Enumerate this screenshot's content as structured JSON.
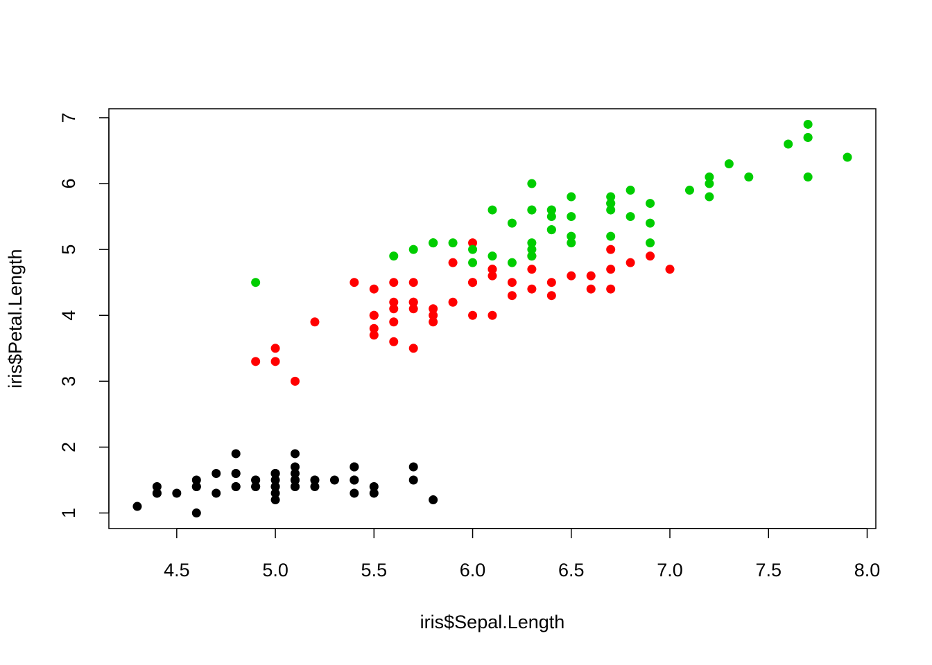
{
  "chart_data": {
    "type": "scatter",
    "x_label": "iris$Sepal.Length",
    "y_label": "iris$Petal.Length",
    "xlim": [
      4.156,
      8.044
    ],
    "ylim": [
      0.764,
      7.136
    ],
    "xticks": [
      4.5,
      {
        "value": 5,
        "label": "5.0"
      },
      5.5,
      {
        "value": 6,
        "label": "6.0"
      },
      6.5,
      {
        "value": 7,
        "label": "7.0"
      },
      7.5,
      {
        "value": 8,
        "label": "8.0"
      }
    ],
    "yticks": [
      1,
      2,
      3,
      4,
      5,
      6,
      7
    ],
    "grid": false,
    "series": [
      {
        "color": "#000000",
        "x": [
          5.1,
          4.9,
          4.7,
          4.6,
          5.0,
          5.4,
          4.6,
          5.0,
          4.4,
          4.9,
          5.4,
          4.8,
          4.8,
          4.3,
          5.8,
          5.7,
          5.4,
          5.1,
          5.7,
          5.1,
          5.4,
          5.1,
          4.6,
          5.1,
          4.8,
          5.0,
          5.0,
          5.2,
          5.2,
          4.7,
          4.8,
          5.4,
          5.2,
          5.5,
          4.9,
          5.0,
          5.5,
          4.9,
          4.4,
          5.1,
          5.0,
          4.5,
          4.4,
          5.0,
          5.1,
          4.8,
          5.1,
          4.6,
          5.3,
          5.0
        ],
        "values": [
          1.4,
          1.4,
          1.3,
          1.5,
          1.4,
          1.7,
          1.4,
          1.5,
          1.4,
          1.5,
          1.5,
          1.6,
          1.4,
          1.1,
          1.2,
          1.5,
          1.3,
          1.4,
          1.7,
          1.5,
          1.7,
          1.5,
          1.0,
          1.7,
          1.9,
          1.6,
          1.6,
          1.5,
          1.4,
          1.6,
          1.6,
          1.5,
          1.5,
          1.4,
          1.5,
          1.2,
          1.3,
          1.4,
          1.3,
          1.5,
          1.3,
          1.3,
          1.3,
          1.6,
          1.9,
          1.4,
          1.6,
          1.4,
          1.5,
          1.4
        ]
      },
      {
        "color": "#ff0000",
        "x": [
          7.0,
          6.4,
          6.9,
          5.5,
          6.5,
          5.7,
          6.3,
          4.9,
          6.6,
          5.2,
          5.0,
          5.9,
          6.0,
          6.1,
          5.6,
          6.7,
          5.6,
          5.8,
          6.2,
          5.6,
          5.9,
          6.1,
          6.3,
          6.1,
          6.4,
          6.6,
          6.8,
          6.7,
          6.0,
          5.7,
          5.5,
          5.5,
          5.8,
          6.0,
          5.4,
          6.0,
          6.7,
          6.3,
          5.6,
          5.5,
          5.5,
          6.1,
          5.8,
          5.0,
          5.6,
          5.7,
          5.7,
          6.2,
          5.1,
          5.7
        ],
        "values": [
          4.7,
          4.5,
          4.9,
          4.0,
          4.6,
          4.5,
          4.7,
          3.3,
          4.6,
          3.9,
          3.5,
          4.2,
          4.0,
          4.7,
          3.6,
          4.4,
          4.5,
          4.1,
          4.5,
          3.9,
          4.8,
          4.0,
          4.9,
          4.7,
          4.3,
          4.4,
          4.8,
          5.0,
          4.5,
          3.5,
          3.8,
          3.7,
          3.9,
          5.1,
          4.5,
          4.5,
          4.7,
          4.4,
          4.1,
          4.0,
          4.4,
          4.6,
          4.0,
          3.3,
          4.2,
          4.2,
          4.2,
          4.3,
          3.0,
          4.1
        ]
      },
      {
        "color": "#00cd00",
        "x": [
          6.3,
          5.8,
          7.1,
          6.3,
          6.5,
          7.6,
          4.9,
          7.3,
          6.7,
          7.2,
          6.5,
          6.4,
          6.8,
          5.7,
          5.8,
          6.4,
          6.5,
          7.7,
          7.7,
          6.0,
          6.9,
          5.6,
          7.7,
          6.3,
          6.7,
          7.2,
          6.2,
          6.1,
          6.4,
          7.2,
          7.4,
          7.9,
          6.4,
          6.3,
          6.1,
          7.7,
          6.3,
          6.4,
          6.0,
          6.9,
          6.7,
          6.9,
          5.8,
          6.8,
          6.7,
          6.7,
          6.3,
          6.5,
          6.2,
          5.9
        ],
        "values": [
          6.0,
          5.1,
          5.9,
          5.6,
          5.8,
          6.6,
          4.5,
          6.3,
          5.8,
          6.1,
          5.1,
          5.3,
          5.5,
          5.0,
          5.1,
          5.3,
          5.5,
          6.7,
          6.9,
          5.0,
          5.7,
          4.9,
          6.7,
          4.9,
          5.7,
          6.0,
          4.8,
          4.9,
          5.6,
          5.8,
          6.1,
          6.4,
          5.6,
          5.1,
          5.6,
          6.1,
          5.6,
          5.5,
          4.8,
          5.4,
          5.6,
          5.1,
          5.1,
          5.9,
          5.7,
          5.2,
          5.0,
          5.2,
          5.4,
          5.1
        ]
      }
    ]
  }
}
